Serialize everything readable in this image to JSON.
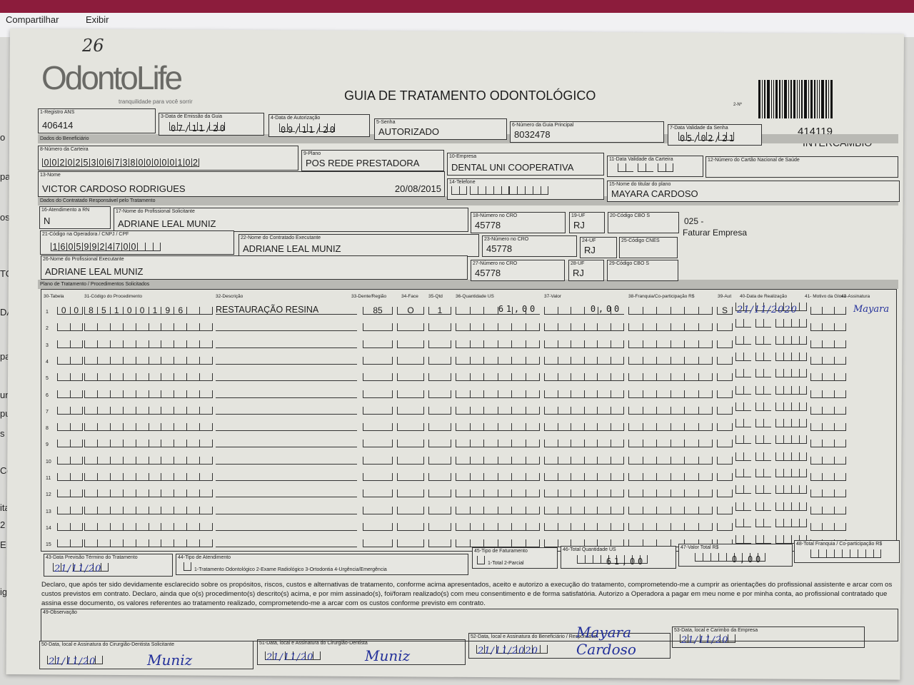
{
  "window": {
    "menu": [
      "Compartilhar",
      "Exibir"
    ],
    "sidebar_fragments": [
      "o",
      "pal",
      "os",
      "TO",
      "DA",
      "palh",
      "uni",
      "puta",
      "s",
      "Cor",
      "itat",
      "2",
      "ENT",
      "ig"
    ]
  },
  "form": {
    "page_note": "26",
    "logo": {
      "brand": "OdontoLife",
      "tagline": "tranquilidade para você sorrir"
    },
    "title": "GUIA DE TRATAMENTO ODONTOLÓGICO",
    "guide_number_label": "2-Nº",
    "exchange": {
      "code": "414119",
      "label": "INTERCÂMBIO"
    },
    "fields": {
      "f1": {
        "label": "1-Registro ANS",
        "value": "406414"
      },
      "f3": {
        "label": "3-Data de Emissão da Guia",
        "value": "07/11/20"
      },
      "f4": {
        "label": "4-Data de Autorização",
        "value": "09/11/20"
      },
      "f5": {
        "label": "5-Senha",
        "value": "AUTORIZADO"
      },
      "f6": {
        "label": "6-Número da Guia Principal",
        "value": "8032478"
      },
      "f7": {
        "label": "7-Data Validade da Senha",
        "value": "05/02/21"
      },
      "f8": {
        "label": "8-Número da Carteira",
        "value": "00202530673800000102"
      },
      "f9": {
        "label": "9-Plano",
        "value": "POS REDE PRESTADORA"
      },
      "f10": {
        "label": "10-Empresa",
        "value": "DENTAL UNI  COOPERATIVA"
      },
      "f11": {
        "label": "11-Data Validade da Carteira",
        "value": ""
      },
      "f12": {
        "label": "12-Número do Cartão Nacional de Saúde",
        "value": ""
      },
      "f13": {
        "label": "13-Nome",
        "value": "VICTOR CARDOSO RODRIGUES",
        "birth": "20/08/2015"
      },
      "f14": {
        "label": "14-Telefone",
        "value": ""
      },
      "f15": {
        "label": "15-Nome do titular do plano",
        "value": "MAYARA CARDOSO"
      },
      "f16": {
        "label": "16-Atendimento a RN",
        "value": "N"
      },
      "f17": {
        "label": "17-Nome do Profissional Solicitante",
        "value": "ADRIANE LEAL MUNIZ"
      },
      "f18": {
        "label": "18-Número no CRO",
        "value": "45778"
      },
      "f19": {
        "label": "19-UF",
        "value": "RJ"
      },
      "f20": {
        "label": "20-Código CBO S",
        "value": ""
      },
      "f21": {
        "label": "21-Código na Operadora / CNPJ / CPF",
        "value": "16059924700"
      },
      "f22": {
        "label": "22-Nome do Contratado Executante",
        "value": "ADRIANE LEAL MUNIZ"
      },
      "f23": {
        "label": "23-Número no CRO",
        "value": "45778"
      },
      "f24": {
        "label": "24-UF",
        "value": "RJ"
      },
      "f25": {
        "label": "25-Código CNES",
        "value": ""
      },
      "f26": {
        "label": "26-Nome do Profissional Executante",
        "value": "ADRIANE LEAL MUNIZ"
      },
      "f27": {
        "label": "27-Número no CRO",
        "value": "45778"
      },
      "f28": {
        "label": "28-UF",
        "value": "RJ"
      },
      "f29": {
        "label": "29-Código CBO S",
        "value": ""
      }
    },
    "billing_note": {
      "code": "025 -",
      "text": "Faturar Empresa"
    },
    "sections": {
      "beneficiary": "Dados do Beneficiário",
      "contracted": "Dados do Contratado Responsável pelo Tratamento",
      "plan": "Plano de Tratamento / Procedimentos Solicitados"
    },
    "table": {
      "headers": [
        "30-Tabela",
        "31-Código do Procedimento",
        "32-Descrição",
        "33-Dente/Região",
        "34-Face",
        "35-Qtd",
        "36-Quantidade US",
        "37-Valor",
        "38-Franquia/Co-participação R$",
        "39-Aut",
        "40-Data de Realização",
        "41- Motivo da Glosa",
        "42-Assinatura"
      ],
      "rows": [
        {
          "n": "1",
          "tabela": "00",
          "codigo": "85100196",
          "descricao": "RESTAURAÇÃO RESINA",
          "dente": "85",
          "face": "O",
          "qtd": "1",
          "qtd_us": "61,00",
          "valor": "0,00",
          "franquia": "",
          "aut": "S",
          "data": "21/11/2020",
          "glosa": "",
          "assinatura": "Mayara"
        },
        {
          "n": "2"
        },
        {
          "n": "3"
        },
        {
          "n": "4"
        },
        {
          "n": "5"
        },
        {
          "n": "6"
        },
        {
          "n": "7"
        },
        {
          "n": "8"
        },
        {
          "n": "9"
        },
        {
          "n": "10"
        },
        {
          "n": "11"
        },
        {
          "n": "12"
        },
        {
          "n": "13"
        },
        {
          "n": "14"
        },
        {
          "n": "15"
        }
      ]
    },
    "footer": {
      "f43": {
        "label": "43-Data Previsão Término do Tratamento",
        "value": "21/11/20"
      },
      "f44": {
        "label": "44-Tipo de Atendimento",
        "options": "1-Tratamento Odontológico  2-Exame Radiológico  3-Ortodontia  4-Urgência/Emergência"
      },
      "f45": {
        "label": "45-Tipo de Faturamento",
        "options": "1-Total  2-Parcial"
      },
      "f46": {
        "label": "46-Total Quantidade US",
        "value": "61,00"
      },
      "f47": {
        "label": "47-Valor Total R$",
        "value": "0,00"
      },
      "f48": {
        "label": "48-Total Franquia / Co-participação R$",
        "value": ""
      },
      "declaration": "Declaro, que após ter sido devidamente esclarecido sobre os propósitos, riscos, custos e alternativas de tratamento, conforme acima apresentados, aceito e autorizo a execução do tratamento, comprometendo-me a cumprir as orientações do profissional assistente e arcar com os custos previstos em contrato. Declaro, ainda que o(s) procedimento(s) descrito(s) acima, e por mim assinado(s), foi/foram realizado(s) com meu consentimento e de forma satisfatória. Autorizo a Operadora a pagar em meu nome e por minha conta, ao profissional contratado que assina esse documento, os valores referentes ao tratamento realizado, comprometendo-me a arcar com os custos conforme previsto em contrato.",
      "f49": {
        "label": "49-Observação",
        "value": ""
      },
      "f50": {
        "label": "50-Data, local e Assinatura do Cirurgião-Dentista Solicitante",
        "date": "21/11/20",
        "signature": "Muniz"
      },
      "f51": {
        "label": "51-Data, local e Assinatura do Cirurgião-Dentista",
        "date": "21/11/20",
        "signature": "Muniz"
      },
      "f52": {
        "label": "52-Data, local e Assinatura do Beneficiário / Responsável",
        "date": "21/11/2020",
        "signature": "Mayara Cardoso"
      },
      "f53": {
        "label": "53-Data, local e Carimbo da Empresa",
        "date": "21/11/20"
      }
    }
  }
}
